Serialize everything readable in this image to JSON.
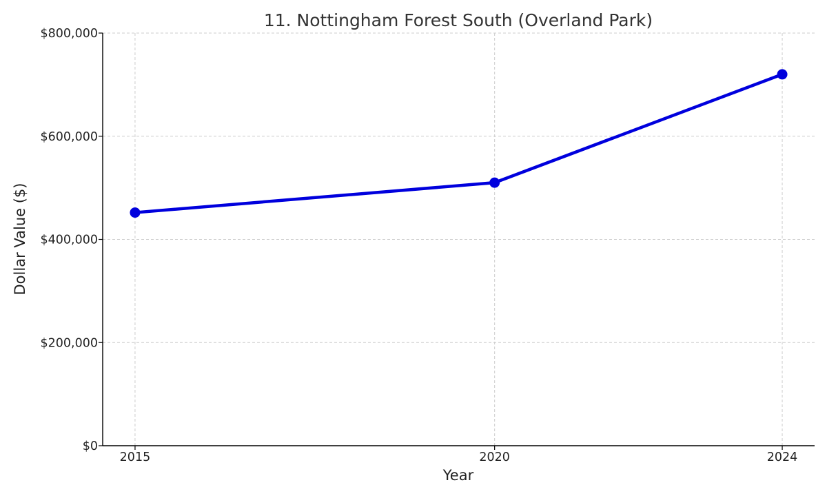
{
  "chart_data": {
    "type": "line",
    "title": "11. Nottingham Forest South (Overland Park)",
    "xlabel": "Year",
    "ylabel": "Dollar Value ($)",
    "x": [
      2015,
      2020,
      2024
    ],
    "series": [
      {
        "values": [
          452000,
          510000,
          720000
        ],
        "color": "#0000dd"
      }
    ],
    "xlim": [
      2014.55,
      2024.45
    ],
    "ylim": [
      0,
      800000
    ],
    "xticks": [
      2015,
      2020,
      2024
    ],
    "yticks": [
      0,
      200000,
      400000,
      600000,
      800000
    ],
    "ytick_labels": [
      "$0",
      "$200,000",
      "$400,000",
      "$600,000",
      "$800,000"
    ],
    "grid": true,
    "legend": "none"
  }
}
